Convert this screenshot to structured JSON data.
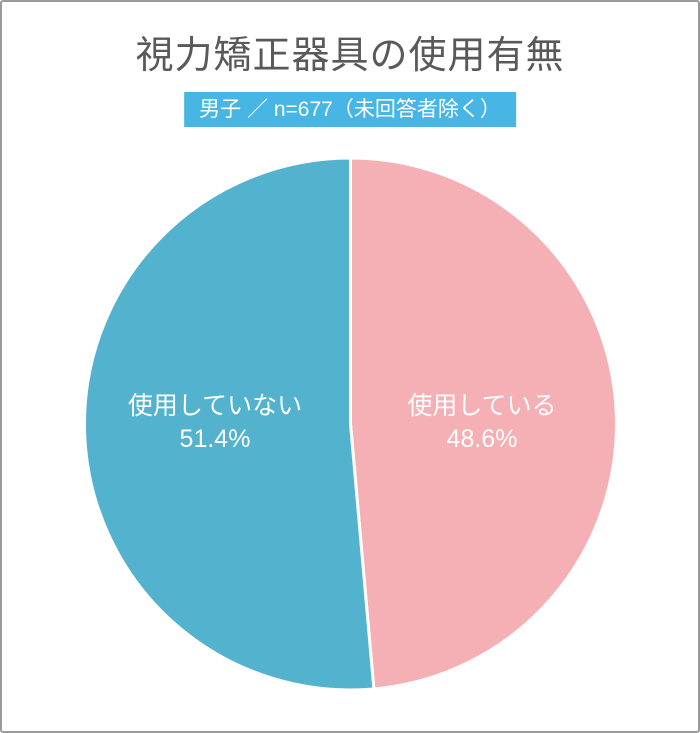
{
  "page": {
    "title": "視力矯正器具の使用有無",
    "badge": "男子 ／ n=677（未回答者除く）"
  },
  "colors": {
    "title_text": "#595959",
    "badge_bg": "#48B6E5",
    "badge_text": "#FFFFFF",
    "frame_border": "#9B9B9B",
    "background": "#FFFFFF",
    "slice_gap": "#FFFFFF",
    "slice_label_text": "#FFFFFF"
  },
  "chart_data": {
    "type": "pie",
    "title": "視力矯正器具の使用有無",
    "subtitle": "男子 ／ n=677（未回答者除く）",
    "n": 677,
    "start_angle_deg": 0,
    "direction": "clockwise",
    "legend": "none",
    "labels_position": "inside",
    "slices": [
      {
        "label": "使用している",
        "value": 48.6,
        "display_value": "48.6%",
        "color": "#F5B0B5",
        "side": "right"
      },
      {
        "label": "使用していない",
        "value": 51.4,
        "display_value": "51.4%",
        "color": "#53B2CD",
        "side": "left"
      }
    ]
  }
}
